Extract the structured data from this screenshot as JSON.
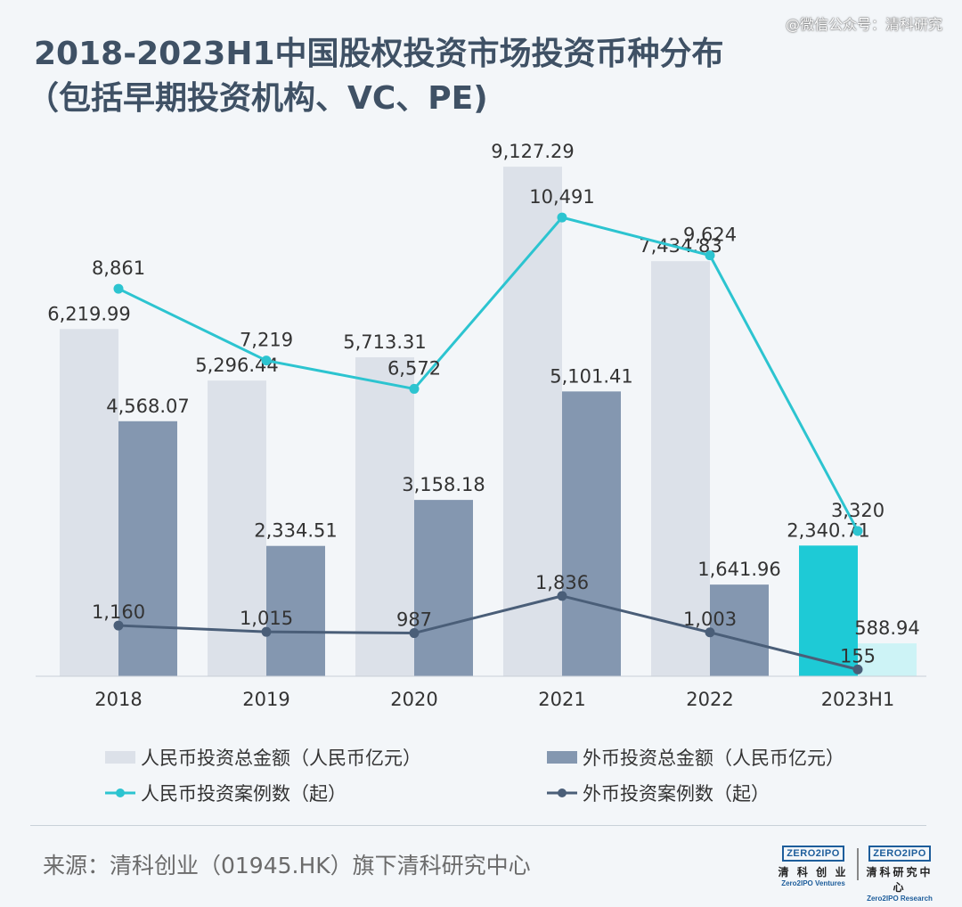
{
  "watermark": "@微信公众号：清科研究",
  "title_line1": "2018-2023H1中国股权投资市场投资币种分布",
  "title_line2": "（包括早期投资机构、VC、PE)",
  "chart_data": {
    "type": "bar",
    "categories": [
      "2018",
      "2019",
      "2020",
      "2021",
      "2022",
      "2023H1"
    ],
    "series": [
      {
        "name": "人民币投资总金额（人民币亿元）",
        "kind": "bar",
        "axis": "left",
        "values": [
          6219.99,
          5296.44,
          5713.31,
          9127.29,
          7434.83,
          2340.71
        ],
        "labels": [
          "6,219.99",
          "5,296.44",
          "5,713.31",
          "9,127.29",
          "7,434.83",
          "2,340.71"
        ]
      },
      {
        "name": "外币投资总金额（人民币亿元）",
        "kind": "bar",
        "axis": "left",
        "values": [
          4568.07,
          2334.51,
          3158.18,
          5101.41,
          1641.96,
          588.94
        ],
        "labels": [
          "4,568.07",
          "2,334.51",
          "3,158.18",
          "5,101.41",
          "1,641.96",
          "588.94"
        ]
      },
      {
        "name": "人民币投资案例数（起）",
        "kind": "line",
        "axis": "right",
        "values": [
          8861,
          7219,
          6572,
          10491,
          9624,
          3320
        ],
        "labels": [
          "8,861",
          "7,219",
          "6,572",
          "10,491",
          "9,624",
          "3,320"
        ]
      },
      {
        "name": "外币投资案例数（起）",
        "kind": "line",
        "axis": "right",
        "values": [
          1160,
          1015,
          987,
          1836,
          1003,
          155
        ],
        "labels": [
          "1,160",
          "1,015",
          "987",
          "1,836",
          "1,003",
          "155"
        ]
      }
    ],
    "ylim_left": [
      0,
      9400
    ],
    "ylim_right": [
      0,
      12000
    ],
    "grid": false,
    "legend_position": "bottom",
    "colors": {
      "rmb_bar": "#dce1e9",
      "fx_bar": "#8497b0",
      "rmb_bar_highlight": "#1ecad6",
      "fx_bar_highlight": "#cdf3f6",
      "rmb_line": "#2cc4d0",
      "fx_line": "#4a5e78"
    }
  },
  "legend": {
    "rmb_amount": "人民币投资总金额（人民币亿元）",
    "fx_amount": "外币投资总金额（人民币亿元）",
    "rmb_cases": "人民币投资案例数（起）",
    "fx_cases": "外币投资案例数（起）"
  },
  "source": "来源：清科创业（01945.HK）旗下清科研究中心",
  "logos": {
    "left_box": "ZERO2IPO",
    "left_cn": "清 科 创 业",
    "left_en": "Zero2IPO Ventures",
    "right_box": "ZERO2IPO",
    "right_cn": "清科研究中心",
    "right_en": "Zero2IPO Research"
  }
}
